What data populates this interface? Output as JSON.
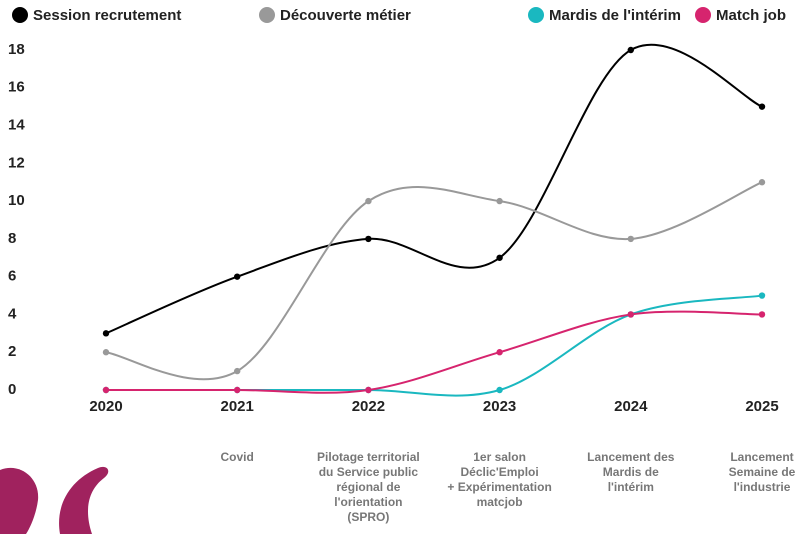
{
  "chart_data": {
    "type": "line",
    "categories": [
      "2020",
      "2021",
      "2022",
      "2023",
      "2024",
      "2025"
    ],
    "series": [
      {
        "name": "Session recrutement",
        "color": "#000000",
        "values": [
          3,
          6,
          8,
          7,
          18,
          15
        ]
      },
      {
        "name": "Découverte métier",
        "color": "#999999",
        "values": [
          2,
          1,
          10,
          10,
          8,
          11
        ]
      },
      {
        "name": "Mardis de l'intérim",
        "color": "#1ab8c0",
        "values": [
          0,
          0,
          0,
          0,
          4,
          5
        ]
      },
      {
        "name": "Match job",
        "color": "#d6246e",
        "values": [
          0,
          0,
          0,
          2,
          4,
          4
        ]
      }
    ],
    "ylim": [
      0,
      18
    ],
    "yticks": [
      0,
      2,
      4,
      6,
      8,
      10,
      12,
      14,
      16,
      18
    ],
    "grid": false,
    "smooth": true,
    "annotations": [
      null,
      [
        "Covid"
      ],
      [
        "Pilotage territorial",
        "du Service public",
        "régional de",
        "l'orientation",
        "(SPRO)"
      ],
      [
        "1er salon",
        "Déclic'Emploi",
        "+ Expérimentation",
        "matcjob"
      ],
      [
        "Lancement des",
        "Mardis de",
        "l'intérim"
      ],
      [
        "Lancement",
        "Semaine de",
        "l'industrie"
      ]
    ]
  }
}
